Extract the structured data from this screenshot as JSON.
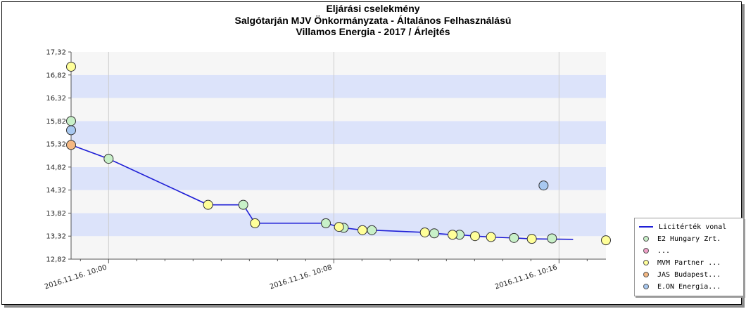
{
  "title_lines": [
    "Eljárási cselekmény",
    "Salgótarján MJV Önkormányzata - Általános Felhasználású",
    "Villamos Energia - 2017 / Árlejtés"
  ],
  "chart_data": {
    "type": "scatter",
    "title": "Eljárási cselekmény Salgótarján MJV Önkormányzata - Általános Felhasználású Villamos Energia - 2017 / Árlejtés",
    "xlabel": "",
    "ylabel": "",
    "xlim": [
      "2016.11.16. 09:58:40",
      "2016.11.16. 10:17:40"
    ],
    "ylim": [
      12.82,
      17.32
    ],
    "y_ticks": [
      "12,82",
      "13,32",
      "13,82",
      "14,32",
      "14,82",
      "15,32",
      "15,82",
      "16,32",
      "16,82",
      "17,32"
    ],
    "x_tick_labels": [
      "2016.11.16. 10:00",
      "2016.11.16. 10:08",
      "2016.11.16. 10:16"
    ],
    "grid": true,
    "legend_position": "bottom-right",
    "line_series": {
      "name": "Licitérték vonal",
      "color": "#1f1fd6",
      "points": [
        [
          "2016.11.16. 09:58:40",
          15.3
        ],
        [
          "2016.11.16. 10:00:00",
          15.0
        ],
        [
          "2016.11.16. 10:03:32",
          14.0
        ],
        [
          "2016.11.16. 10:04:47",
          14.0
        ],
        [
          "2016.11.16. 10:05:12",
          13.6
        ],
        [
          "2016.11.16. 10:07:43",
          13.6
        ],
        [
          "2016.11.16. 10:08:11",
          13.52
        ],
        [
          "2016.11.16. 10:08:21",
          13.5
        ],
        [
          "2016.11.16. 10:09:01",
          13.45
        ],
        [
          "2016.11.16. 10:09:21",
          13.45
        ],
        [
          "2016.11.16. 10:11:14",
          13.4
        ],
        [
          "2016.11.16. 10:11:34",
          13.38
        ],
        [
          "2016.11.16. 10:12:13",
          13.35
        ],
        [
          "2016.11.16. 10:12:28",
          13.35
        ],
        [
          "2016.11.16. 10:13:01",
          13.32
        ],
        [
          "2016.11.16. 10:13:35",
          13.3
        ],
        [
          "2016.11.16. 10:14:24",
          13.28
        ],
        [
          "2016.11.16. 10:15:02",
          13.26
        ],
        [
          "2016.11.16. 10:16:30",
          13.25
        ]
      ]
    },
    "series": [
      {
        "name": "E2 Hungary Zrt.",
        "color": "#c8f0c8",
        "points": [
          [
            "2016.11.16. 09:58:40",
            15.82
          ],
          [
            "2016.11.16. 10:00:00",
            15.0
          ],
          [
            "2016.11.16. 10:04:47",
            14.0
          ],
          [
            "2016.11.16. 10:07:43",
            13.6
          ],
          [
            "2016.11.16. 10:08:21",
            13.5
          ],
          [
            "2016.11.16. 10:09:21",
            13.45
          ],
          [
            "2016.11.16. 10:11:34",
            13.38
          ],
          [
            "2016.11.16. 10:12:28",
            13.35
          ],
          [
            "2016.11.16. 10:14:24",
            13.28
          ],
          [
            "2016.11.16. 10:15:45",
            13.27
          ]
        ]
      },
      {
        "name": "...",
        "color": "#f0a0c8",
        "points": []
      },
      {
        "name": "MVM Partner ...",
        "color": "#ffff99",
        "points": [
          [
            "2016.11.16. 09:58:40",
            17.0
          ],
          [
            "2016.11.16. 10:03:32",
            14.0
          ],
          [
            "2016.11.16. 10:05:12",
            13.6
          ],
          [
            "2016.11.16. 10:08:11",
            13.52
          ],
          [
            "2016.11.16. 10:09:01",
            13.45
          ],
          [
            "2016.11.16. 10:11:14",
            13.4
          ],
          [
            "2016.11.16. 10:12:13",
            13.35
          ],
          [
            "2016.11.16. 10:13:01",
            13.32
          ],
          [
            "2016.11.16. 10:13:35",
            13.3
          ],
          [
            "2016.11.16. 10:15:02",
            13.26
          ],
          [
            "2016.11.16. 10:17:40",
            13.23
          ]
        ]
      },
      {
        "name": "JAS Budapest...",
        "color": "#f5b882",
        "points": [
          [
            "2016.11.16. 09:58:40",
            15.3
          ]
        ]
      },
      {
        "name": "E.ON Energia...",
        "color": "#a8c8f0",
        "points": [
          [
            "2016.11.16. 09:58:40",
            15.62
          ],
          [
            "2016.11.16. 10:15:27",
            14.42
          ]
        ]
      }
    ]
  }
}
